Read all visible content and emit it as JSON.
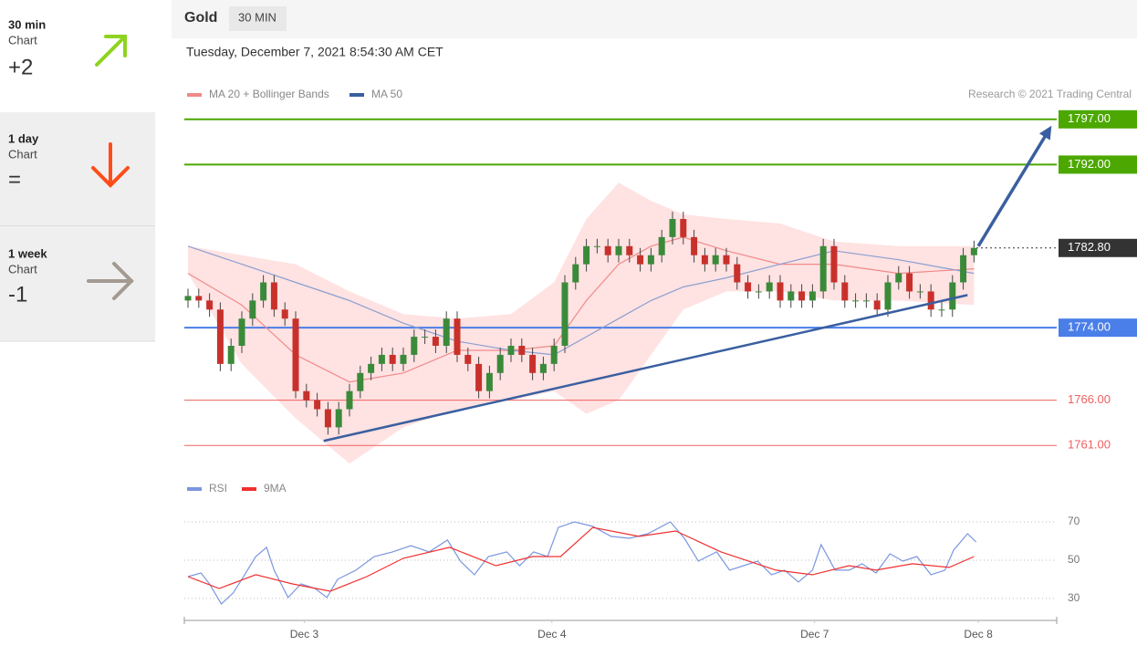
{
  "sidebar": [
    {
      "period": "30 min",
      "label": "Chart",
      "score": "+2"
    },
    {
      "period": "1 day",
      "label": "Chart",
      "score": "="
    },
    {
      "period": "1 week",
      "label": "Chart",
      "score": "-1"
    }
  ],
  "chart_data": {
    "type": "candlestick",
    "title": "Gold",
    "interval": "30 MIN",
    "subtitle": "Tuesday, December 7, 2021 8:54:30 AM CET",
    "credit": "Research © 2021 Trading Central",
    "up_color": "#3a8a3a",
    "down_color": "#c8312b",
    "xlim": [
      -0.34,
      80.68
    ],
    "ylim": [
      1757.8,
      1800.1
    ],
    "xticks": [
      {
        "value": 10.8,
        "label": "Dec 3"
      },
      {
        "value": 33.8,
        "label": "Dec 4"
      },
      {
        "value": 58.2,
        "label": "Dec 7"
      },
      {
        "value": 73.4,
        "label": "Dec 8"
      }
    ],
    "candles": [
      [
        1777,
        1778.3,
        1776.2,
        1777.5
      ],
      [
        1777.5,
        1778.3,
        1776.2,
        1777
      ],
      [
        1777,
        1777.8,
        1775.2,
        1776
      ],
      [
        1776,
        1776.8,
        1769.2,
        1770
      ],
      [
        1770,
        1772.8,
        1769.2,
        1772
      ],
      [
        1772,
        1775.8,
        1771.2,
        1775
      ],
      [
        1775,
        1777.8,
        1774.2,
        1777
      ],
      [
        1777,
        1779.8,
        1776.2,
        1779
      ],
      [
        1779,
        1779.8,
        1775.2,
        1776
      ],
      [
        1776,
        1776.8,
        1774.2,
        1775
      ],
      [
        1775,
        1775.8,
        1766.2,
        1767
      ],
      [
        1767,
        1767.8,
        1765.2,
        1766
      ],
      [
        1766,
        1766.8,
        1764.2,
        1765
      ],
      [
        1765,
        1765.8,
        1762.2,
        1763
      ],
      [
        1763,
        1765.8,
        1762.2,
        1765
      ],
      [
        1765,
        1767.8,
        1764.2,
        1767
      ],
      [
        1767,
        1769.8,
        1766.2,
        1769
      ],
      [
        1769,
        1770.8,
        1768.2,
        1770
      ],
      [
        1770,
        1771.8,
        1769.2,
        1771
      ],
      [
        1771,
        1771.8,
        1769.2,
        1770
      ],
      [
        1770,
        1771.8,
        1769.2,
        1771
      ],
      [
        1771,
        1773.8,
        1770.2,
        1773
      ],
      [
        1773,
        1773.8,
        1772.2,
        1773
      ],
      [
        1773,
        1773.8,
        1771.2,
        1772
      ],
      [
        1772,
        1775.8,
        1771.2,
        1775
      ],
      [
        1775,
        1775.8,
        1770.2,
        1771
      ],
      [
        1771,
        1771.8,
        1769.2,
        1770
      ],
      [
        1770,
        1770.8,
        1766.2,
        1767
      ],
      [
        1767,
        1769.8,
        1766.2,
        1769
      ],
      [
        1769,
        1771.8,
        1768.2,
        1771
      ],
      [
        1771,
        1772.8,
        1770.2,
        1772
      ],
      [
        1772,
        1772.8,
        1770.2,
        1771
      ],
      [
        1771,
        1771.8,
        1768.2,
        1769
      ],
      [
        1769,
        1770.8,
        1768.2,
        1770
      ],
      [
        1770,
        1772.8,
        1769.2,
        1772
      ],
      [
        1772,
        1779.8,
        1771.2,
        1779
      ],
      [
        1779,
        1781.8,
        1778.2,
        1781
      ],
      [
        1781,
        1783.8,
        1780.2,
        1783
      ],
      [
        1783,
        1783.8,
        1782.2,
        1783
      ],
      [
        1783,
        1783.8,
        1781.2,
        1782
      ],
      [
        1782,
        1783.8,
        1781.2,
        1783
      ],
      [
        1783,
        1783.8,
        1781.2,
        1782
      ],
      [
        1782,
        1782.8,
        1780.2,
        1781
      ],
      [
        1781,
        1782.8,
        1780.2,
        1782
      ],
      [
        1782,
        1784.8,
        1781.2,
        1784
      ],
      [
        1784,
        1786.8,
        1783.2,
        1786
      ],
      [
        1786,
        1786.8,
        1783.2,
        1784
      ],
      [
        1784,
        1784.8,
        1781.2,
        1782
      ],
      [
        1782,
        1782.8,
        1780.2,
        1781
      ],
      [
        1781,
        1782.8,
        1780.2,
        1782
      ],
      [
        1782,
        1782.8,
        1780.2,
        1781
      ],
      [
        1781,
        1781.8,
        1778.2,
        1779
      ],
      [
        1779,
        1779.8,
        1777.2,
        1778
      ],
      [
        1778,
        1778.8,
        1777.2,
        1778
      ],
      [
        1778,
        1779.8,
        1777.2,
        1779
      ],
      [
        1779,
        1779.8,
        1776.2,
        1777
      ],
      [
        1777,
        1778.8,
        1776.2,
        1778
      ],
      [
        1778,
        1778.8,
        1776.2,
        1777
      ],
      [
        1777,
        1778.8,
        1776.2,
        1778
      ],
      [
        1778,
        1783.8,
        1777.2,
        1783
      ],
      [
        1783,
        1783.8,
        1778.2,
        1779
      ],
      [
        1779,
        1779.8,
        1776.2,
        1777
      ],
      [
        1777,
        1777.8,
        1776.2,
        1777
      ],
      [
        1777,
        1777.8,
        1776.2,
        1777
      ],
      [
        1777,
        1777.8,
        1775.2,
        1776
      ],
      [
        1776,
        1779.8,
        1775.2,
        1779
      ],
      [
        1779,
        1780.8,
        1778.2,
        1780
      ],
      [
        1780,
        1780.8,
        1777.2,
        1778
      ],
      [
        1778,
        1778.8,
        1777.2,
        1778
      ],
      [
        1778,
        1778.8,
        1775.2,
        1776
      ],
      [
        1776,
        1776.8,
        1775.2,
        1776
      ],
      [
        1776,
        1779.8,
        1775.2,
        1779
      ],
      [
        1779,
        1782.8,
        1778.2,
        1782
      ],
      [
        1782,
        1783.6,
        1781.2,
        1782.8
      ]
    ],
    "overlay": {
      "x": [
        0,
        5,
        10,
        15,
        20,
        25,
        30,
        34,
        37,
        40,
        43,
        46,
        50,
        55,
        60,
        66,
        73
      ],
      "series": [
        {
          "name": "MA 20 + Bollinger Bands",
          "color": "#f08a8a",
          "values": [
            1780,
            1776.5,
            1771,
            1768,
            1769,
            1771.5,
            1771.5,
            1772,
            1777,
            1781,
            1783,
            1784,
            1782.5,
            1781,
            1781,
            1780,
            1780.5
          ],
          "upper": [
            1783,
            1782,
            1781,
            1778,
            1775.5,
            1775,
            1775.5,
            1779,
            1786,
            1790,
            1788,
            1786.5,
            1786,
            1785.5,
            1783.5,
            1783,
            1783
          ],
          "lower": [
            1780,
            1770,
            1764,
            1759,
            1763,
            1765,
            1766,
            1767,
            1764.5,
            1766,
            1771,
            1776,
            1778,
            1778,
            1777,
            1777,
            1776.5
          ]
        },
        {
          "name": "MA 50",
          "color": "#3a5fa0",
          "values": [
            1783,
            1781,
            1779,
            1777,
            1774.5,
            1772.5,
            1771.5,
            1771,
            1773,
            1775,
            1777,
            1778.5,
            1779.5,
            1781,
            1782.5,
            1781.5,
            1780
          ]
        }
      ]
    },
    "levels": [
      {
        "value": 1797,
        "label": "1797.00",
        "color": "#4ca800",
        "box": true,
        "style": "solid"
      },
      {
        "value": 1792,
        "label": "1792.00",
        "color": "#4ca800",
        "box": true,
        "style": "solid"
      },
      {
        "value": 1782.8,
        "label": "1782.80",
        "color": "#333333",
        "box": true,
        "style": "dotted"
      },
      {
        "value": 1774,
        "label": "1774.00",
        "color": "#4a7ee8",
        "box": true,
        "style": "solid"
      },
      {
        "value": 1766,
        "label": "1766.00",
        "color": "#f06060",
        "box": false,
        "style": "solid"
      },
      {
        "value": 1761,
        "label": "1761.00",
        "color": "#f06060",
        "box": false,
        "style": "solid"
      }
    ],
    "trendline": {
      "x": [
        12.6,
        72.4
      ],
      "y": [
        1761.5,
        1777.6
      ],
      "color": "#3a5fa0"
    },
    "arrow": {
      "x": [
        73.4,
        80.2
      ],
      "y": [
        1783,
        1796.3
      ],
      "color": "#3a5fa0"
    },
    "rsi": {
      "ylim": [
        23.3,
        75.7
      ],
      "yticks": [
        30,
        50,
        70
      ],
      "series": [
        {
          "name": "RSI",
          "color": "#7b96e0",
          "x": [
            0,
            1.2,
            2,
            3.1,
            4.2,
            5,
            6.3,
            7.3,
            8,
            9.3,
            10.5,
            11.8,
            12.9,
            13.9,
            15.6,
            17.3,
            19,
            20.7,
            22.4,
            24.1,
            25.3,
            26.6,
            27.9,
            29.6,
            30.8,
            32.1,
            33.4,
            34.4,
            35.9,
            37.6,
            39.3,
            41,
            42.7,
            44.8,
            46.1,
            47.4,
            49.1,
            50.3,
            51.6,
            52.9,
            54.2,
            55.4,
            56.7,
            58,
            58.8,
            60.1,
            61.4,
            62.6,
            63.9,
            65.2,
            66.4,
            67.7,
            69,
            70.3,
            71.1,
            72.4,
            73.2
          ],
          "values": [
            41.4,
            43.3,
            37.6,
            27.1,
            32.9,
            40,
            51.9,
            56.7,
            44.8,
            30.5,
            37.6,
            35.2,
            30.5,
            40,
            44.8,
            51.9,
            54.3,
            57.6,
            54.3,
            60.5,
            49.5,
            42.4,
            51.9,
            54.3,
            47.1,
            54.3,
            51.9,
            67.1,
            70,
            67.6,
            62.4,
            61.4,
            63.8,
            70,
            61.4,
            49.5,
            54.3,
            44.8,
            47.1,
            49.5,
            42.4,
            44.8,
            38.6,
            44.8,
            58.1,
            44.8,
            44.8,
            48.1,
            43.3,
            53.3,
            49.5,
            51.9,
            42.4,
            44.8,
            55.2,
            63.8,
            59.5
          ]
        },
        {
          "name": "9MA",
          "color": "#f03030",
          "x": [
            0,
            2.9,
            6.3,
            9.7,
            13.2,
            16.6,
            20,
            24.3,
            28.6,
            32,
            34.6,
            37.6,
            41.9,
            45.3,
            49.5,
            54.6,
            58,
            61.4,
            63.9,
            67.3,
            70.7,
            73
          ],
          "values": [
            41.4,
            35.2,
            42.4,
            37.6,
            33.8,
            41.4,
            51,
            56.7,
            47.1,
            51.9,
            51.9,
            67.1,
            62.4,
            65.2,
            54.3,
            44.8,
            42.4,
            47.1,
            44.8,
            48.1,
            46.2,
            51.9
          ]
        }
      ]
    }
  }
}
